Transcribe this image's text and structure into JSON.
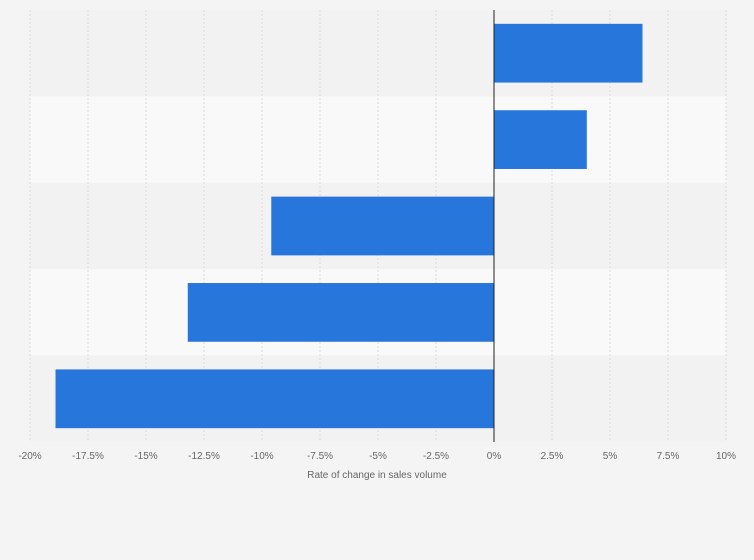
{
  "chart_data": {
    "type": "bar",
    "orientation": "horizontal",
    "categories": [
      "",
      "",
      "",
      "",
      ""
    ],
    "values": [
      6.4,
      4.0,
      -9.6,
      -13.2,
      -18.9
    ],
    "title": "",
    "xlabel": "Rate of change in sales volume",
    "ylabel": "",
    "xlim": [
      -20,
      10
    ],
    "x_ticks": [
      -20,
      -17.5,
      -15,
      -12.5,
      -10,
      -7.5,
      -5,
      -2.5,
      0,
      2.5,
      5,
      7.5,
      10
    ],
    "x_tick_labels": [
      "-20%",
      "-17.5%",
      "-15%",
      "-12.5%",
      "-10%",
      "-7.5%",
      "-5%",
      "-2.5%",
      "0%",
      "2.5%",
      "5%",
      "7.5%",
      "10%"
    ],
    "grid": true,
    "legend": "none",
    "colors": {
      "bar": "#2776db",
      "band_light": "#f9f9f9",
      "band_dark": "#f2f2f2",
      "grid": "#dcdcdc",
      "zero_line": "#222222",
      "background": "#f4f4f4"
    }
  }
}
